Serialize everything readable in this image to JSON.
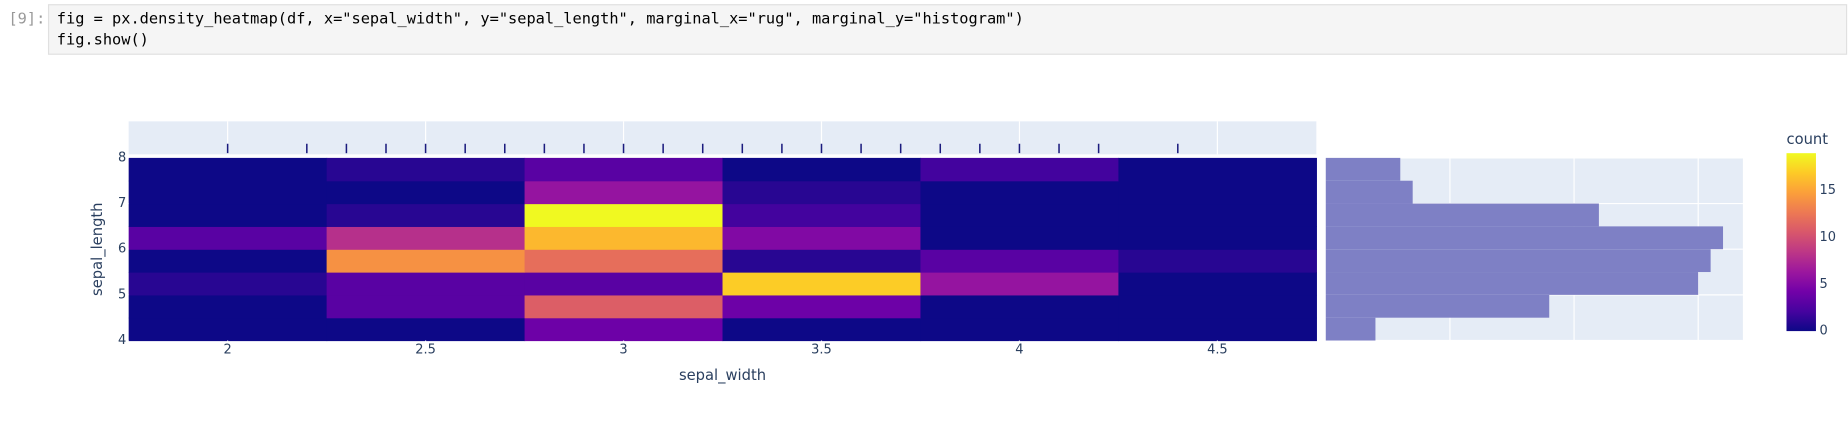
{
  "cell": {
    "prompt": "[9]:",
    "code": [
      "fig = px.density_heatmap(df, x=\"sepal_width\", y=\"sepal_length\", marginal_x=\"rug\", marginal_y=\"histogram\")",
      "fig.show()"
    ]
  },
  "chart_data": {
    "type": "density_heatmap",
    "x_label": "sepal_width",
    "y_label": "sepal_length",
    "xbins": [
      1.75,
      2.25,
      2.75,
      3.25,
      3.75,
      4.25,
      4.75
    ],
    "ybins": [
      4,
      4.5,
      5,
      5.5,
      6,
      6.5,
      7,
      7.5,
      8
    ],
    "z": [
      [
        0,
        0,
        4,
        0,
        0,
        0
      ],
      [
        0,
        3,
        11,
        4,
        0,
        0
      ],
      [
        1,
        3,
        3,
        17,
        6,
        0
      ],
      [
        0,
        14,
        12,
        1,
        3,
        1
      ],
      [
        3,
        8,
        16,
        5,
        0,
        0
      ],
      [
        0,
        1,
        19,
        2,
        0,
        0
      ],
      [
        0,
        0,
        6,
        1,
        0,
        0
      ],
      [
        0,
        1,
        3,
        0,
        2,
        0
      ]
    ],
    "xlim": [
      1.75,
      4.75
    ],
    "xticks": [
      2,
      2.5,
      3,
      3.5,
      4,
      4.5
    ],
    "ylim": [
      4,
      8
    ],
    "yticks": [
      4,
      5,
      6,
      7,
      8
    ],
    "colorscale": [
      "#0d0887",
      "#46039f",
      "#7201a8",
      "#9c179e",
      "#bd3786",
      "#d8576b",
      "#ed7953",
      "#fb9f3a",
      "#fdca26",
      "#f0f921"
    ],
    "zlim": [
      0,
      19
    ],
    "colorbar_title": "count",
    "colorbar_ticks": [
      0,
      5,
      10,
      15
    ],
    "rug": {
      "values": [
        2.0,
        2.2,
        2.3,
        2.4,
        2.5,
        2.6,
        2.7,
        2.8,
        2.9,
        3.0,
        3.1,
        3.2,
        3.3,
        3.4,
        3.5,
        3.6,
        3.7,
        3.8,
        3.9,
        4.0,
        4.1,
        4.2,
        4.4
      ],
      "color": "#1b1b7e"
    },
    "histogram": {
      "bins": [
        4,
        4.5,
        5,
        5.5,
        6,
        6.5,
        7,
        7.5,
        8
      ],
      "values": [
        4,
        18,
        30,
        31,
        32,
        22,
        7,
        6
      ],
      "color": "#7e80c5",
      "xlim": [
        0,
        33.6
      ],
      "grid": [
        10,
        20,
        30
      ]
    }
  }
}
